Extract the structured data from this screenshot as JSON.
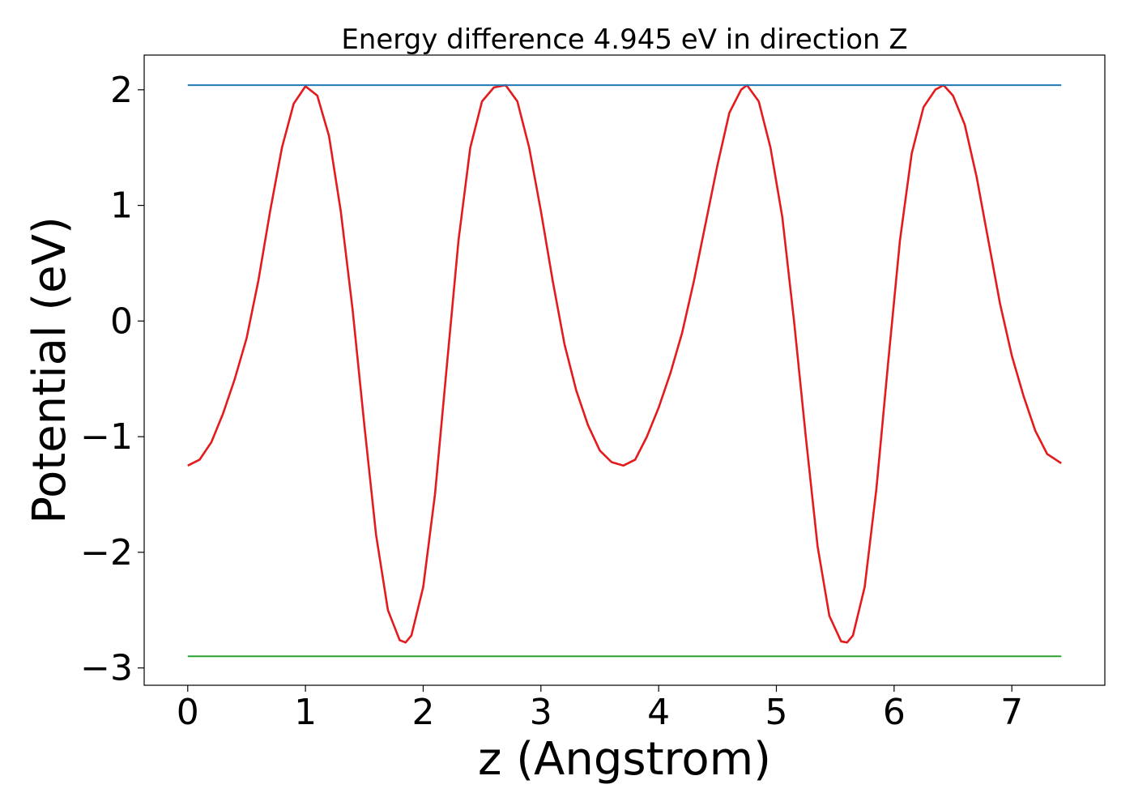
{
  "chart_data": {
    "type": "line",
    "title": "Energy difference 4.945 eV in direction Z",
    "xlabel": "z (Angstrom)",
    "ylabel": "Potential (eV)",
    "xlim": [
      -0.37,
      7.79
    ],
    "ylim": [
      -3.15,
      2.3
    ],
    "xticks": [
      0,
      1,
      2,
      3,
      4,
      5,
      6,
      7
    ],
    "xtick_labels": [
      "0",
      "1",
      "2",
      "3",
      "4",
      "5",
      "6",
      "7"
    ],
    "yticks": [
      -3,
      -2,
      -1,
      0,
      1,
      2
    ],
    "ytick_labels": [
      "−3",
      "−2",
      "−1",
      "0",
      "1",
      "2"
    ],
    "grid": false,
    "series": [
      {
        "color": "#e41a1c",
        "points": [
          [
            0.0,
            -1.25
          ],
          [
            0.1,
            -1.2
          ],
          [
            0.2,
            -1.05
          ],
          [
            0.3,
            -0.8
          ],
          [
            0.4,
            -0.5
          ],
          [
            0.5,
            -0.15
          ],
          [
            0.6,
            0.35
          ],
          [
            0.7,
            0.95
          ],
          [
            0.8,
            1.5
          ],
          [
            0.9,
            1.88
          ],
          [
            1.0,
            2.03
          ],
          [
            1.1,
            1.95
          ],
          [
            1.2,
            1.6
          ],
          [
            1.3,
            0.95
          ],
          [
            1.4,
            0.1
          ],
          [
            1.5,
            -0.9
          ],
          [
            1.6,
            -1.85
          ],
          [
            1.7,
            -2.5
          ],
          [
            1.8,
            -2.76
          ],
          [
            1.85,
            -2.78
          ],
          [
            1.9,
            -2.72
          ],
          [
            2.0,
            -2.3
          ],
          [
            2.1,
            -1.5
          ],
          [
            2.2,
            -0.4
          ],
          [
            2.3,
            0.7
          ],
          [
            2.4,
            1.5
          ],
          [
            2.5,
            1.9
          ],
          [
            2.6,
            2.02
          ],
          [
            2.7,
            2.04
          ],
          [
            2.8,
            1.9
          ],
          [
            2.9,
            1.5
          ],
          [
            3.0,
            0.95
          ],
          [
            3.1,
            0.35
          ],
          [
            3.2,
            -0.2
          ],
          [
            3.3,
            -0.6
          ],
          [
            3.4,
            -0.9
          ],
          [
            3.5,
            -1.12
          ],
          [
            3.6,
            -1.22
          ],
          [
            3.7,
            -1.25
          ],
          [
            3.8,
            -1.2
          ],
          [
            3.9,
            -1.0
          ],
          [
            4.0,
            -0.75
          ],
          [
            4.1,
            -0.45
          ],
          [
            4.2,
            -0.1
          ],
          [
            4.3,
            0.35
          ],
          [
            4.4,
            0.85
          ],
          [
            4.5,
            1.35
          ],
          [
            4.6,
            1.8
          ],
          [
            4.7,
            2.0
          ],
          [
            4.75,
            2.04
          ],
          [
            4.85,
            1.9
          ],
          [
            4.95,
            1.5
          ],
          [
            5.05,
            0.9
          ],
          [
            5.15,
            0.0
          ],
          [
            5.25,
            -1.0
          ],
          [
            5.35,
            -1.95
          ],
          [
            5.45,
            -2.55
          ],
          [
            5.55,
            -2.77
          ],
          [
            5.6,
            -2.78
          ],
          [
            5.65,
            -2.72
          ],
          [
            5.75,
            -2.3
          ],
          [
            5.85,
            -1.45
          ],
          [
            5.95,
            -0.35
          ],
          [
            6.05,
            0.7
          ],
          [
            6.15,
            1.45
          ],
          [
            6.25,
            1.85
          ],
          [
            6.35,
            2.0
          ],
          [
            6.42,
            2.04
          ],
          [
            6.5,
            1.95
          ],
          [
            6.6,
            1.7
          ],
          [
            6.7,
            1.25
          ],
          [
            6.8,
            0.7
          ],
          [
            6.9,
            0.15
          ],
          [
            7.0,
            -0.3
          ],
          [
            7.1,
            -0.65
          ],
          [
            7.2,
            -0.95
          ],
          [
            7.3,
            -1.15
          ],
          [
            7.42,
            -1.23
          ]
        ]
      },
      {
        "color": "#1f77b4",
        "points": [
          [
            0.0,
            2.04
          ],
          [
            7.42,
            2.04
          ]
        ]
      },
      {
        "color": "#2ca02c",
        "points": [
          [
            0.0,
            -2.9
          ],
          [
            7.42,
            -2.9
          ]
        ]
      }
    ]
  }
}
